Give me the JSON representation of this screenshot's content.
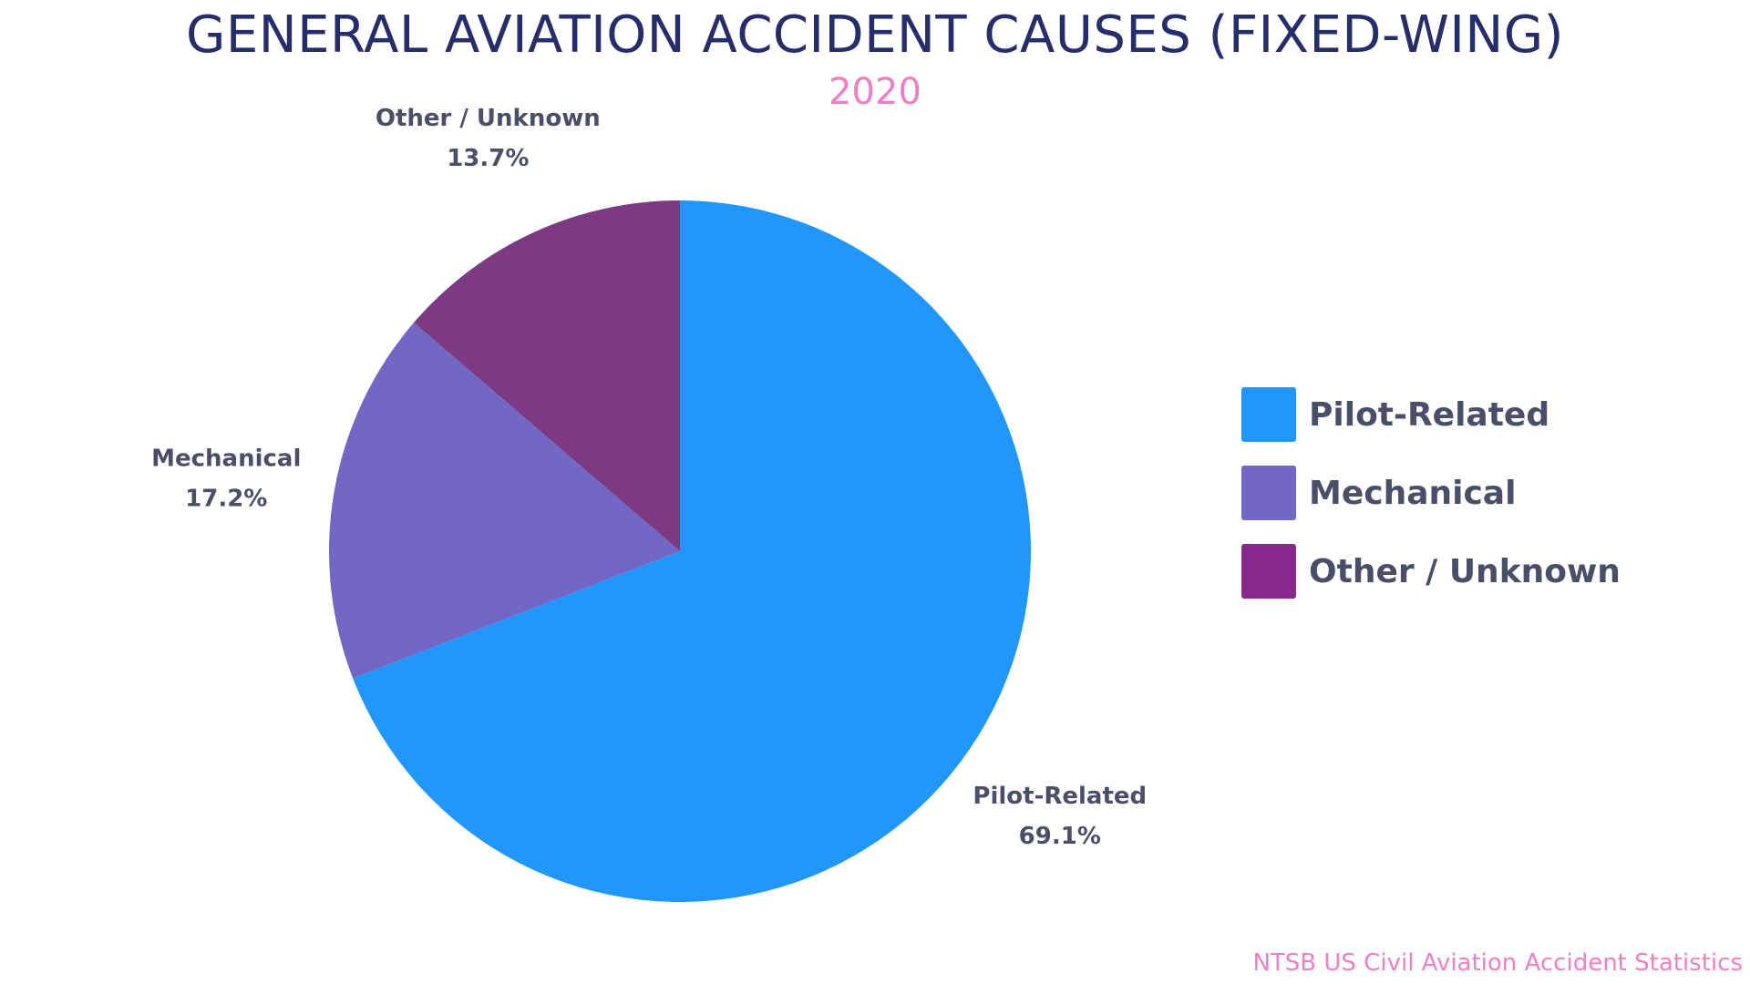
{
  "chart_data": {
    "type": "pie",
    "title": "GENERAL AVIATION ACCIDENT CAUSES (FIXED-WING)",
    "subtitle": "2020",
    "categories": [
      "Pilot-Related",
      "Mechanical",
      "Other / Unknown"
    ],
    "values": [
      69.1,
      17.2,
      13.7
    ],
    "value_labels": [
      "69.1%",
      "17.2%",
      "13.7%"
    ],
    "colors": [
      "#2196fc",
      "#7267c5",
      "#7b3a81"
    ],
    "legend_colors": [
      "#2196fc",
      "#7267c5",
      "#88288c"
    ],
    "legend_position": "right",
    "start_angle": "12 o'clock, clockwise"
  },
  "source": "NTSB US Civil Aviation Accident Statistics"
}
